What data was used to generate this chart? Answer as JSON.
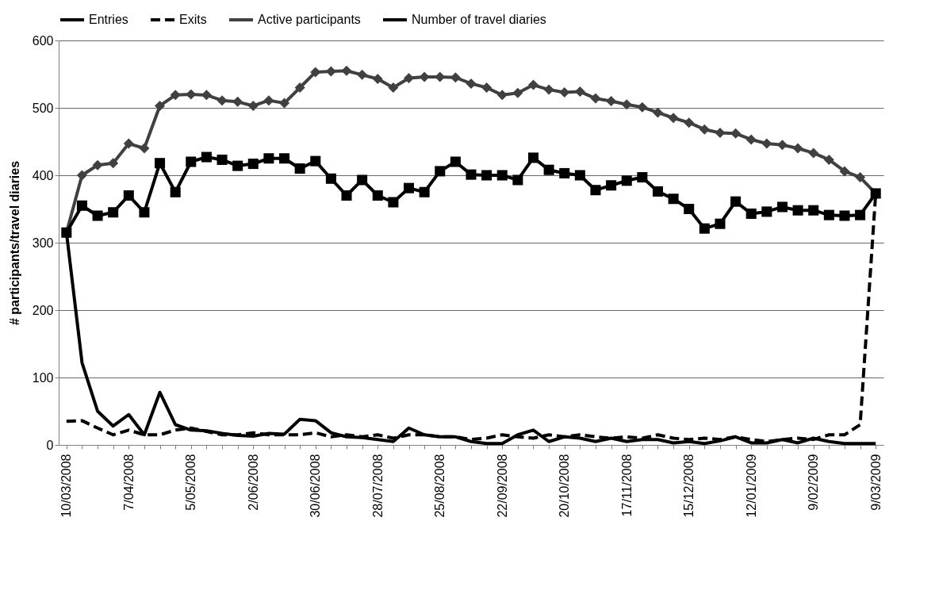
{
  "chart_data": {
    "type": "line",
    "ylabel": "# participants/travel diaries",
    "categories": [
      "10/03/2008",
      null,
      null,
      null,
      "7/04/2008",
      null,
      null,
      null,
      "5/05/2008",
      null,
      null,
      null,
      "2/06/2008",
      null,
      null,
      null,
      "30/06/2008",
      null,
      null,
      null,
      "28/07/2008",
      null,
      null,
      null,
      "25/08/2008",
      null,
      null,
      null,
      "22/09/2008",
      null,
      null,
      null,
      "20/10/2008",
      null,
      null,
      null,
      "17/11/2008",
      null,
      null,
      null,
      "15/12/2008",
      null,
      null,
      null,
      "12/01/2009",
      null,
      null,
      null,
      "9/02/2009",
      null,
      null,
      null,
      "9/03/2009"
    ],
    "series": [
      {
        "name": "Entries",
        "color": "#000000",
        "line_style": "solid",
        "values": [
          315,
          122,
          50,
          28,
          45,
          15,
          78,
          30,
          22,
          21,
          17,
          14,
          13,
          17,
          16,
          38,
          36,
          18,
          12,
          11,
          8,
          5,
          25,
          15,
          12,
          12,
          5,
          2,
          2,
          15,
          22,
          5,
          12,
          10,
          5,
          10,
          5,
          8,
          8,
          3,
          5,
          2,
          6,
          12,
          3,
          3,
          8,
          3,
          10,
          5,
          2,
          2,
          2
        ]
      },
      {
        "name": "Exits",
        "color": "#000000",
        "line_style": "dashed",
        "values": [
          35,
          36,
          25,
          15,
          22,
          15,
          15,
          22,
          25,
          20,
          15,
          15,
          18,
          15,
          15,
          15,
          18,
          12,
          15,
          12,
          15,
          10,
          15,
          15,
          12,
          12,
          8,
          10,
          15,
          12,
          10,
          15,
          12,
          15,
          12,
          10,
          12,
          10,
          15,
          10,
          8,
          10,
          8,
          12,
          8,
          5,
          8,
          10,
          8,
          15,
          15,
          30,
          373
        ]
      },
      {
        "name": "Active participants",
        "color": "#404040",
        "line_style": "solid",
        "marker": "diamond",
        "values": [
          315,
          400,
          415,
          418,
          447,
          440,
          503,
          519,
          520,
          519,
          511,
          509,
          503,
          511,
          507,
          530,
          553,
          554,
          555,
          549,
          543,
          530,
          544,
          546,
          546,
          545,
          536,
          530,
          519,
          522,
          534,
          527,
          523,
          524,
          514,
          510,
          505,
          501,
          493,
          485,
          478,
          468,
          463,
          462,
          453,
          447,
          445,
          440,
          433,
          423,
          406,
          397,
          373
        ]
      },
      {
        "name": "Number of travel diaries",
        "color": "#000000",
        "line_style": "solid",
        "marker": "square",
        "values": [
          315,
          355,
          340,
          345,
          370,
          345,
          418,
          375,
          420,
          427,
          423,
          414,
          417,
          425,
          425,
          410,
          421,
          395,
          370,
          393,
          370,
          360,
          381,
          375,
          406,
          420,
          401,
          400,
          400,
          393,
          426,
          408,
          403,
          400,
          378,
          385,
          392,
          397,
          376,
          365,
          350,
          321,
          328,
          361,
          343,
          346,
          353,
          348,
          348,
          341,
          340,
          341,
          373
        ]
      }
    ],
    "ylim": [
      0,
      600
    ],
    "yticks": [
      0,
      100,
      200,
      300,
      400,
      500,
      600
    ],
    "grid": "y",
    "legend": "top"
  }
}
